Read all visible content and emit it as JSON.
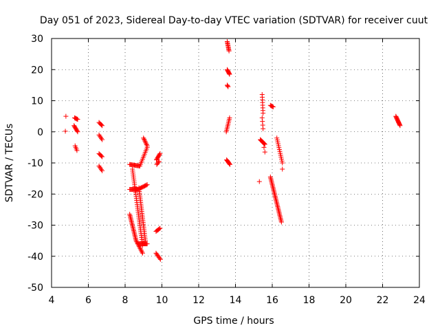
{
  "chart_data": {
    "type": "scatter",
    "title": "Day 051 of 2023, Sidereal Day-to-day VTEC variation (SDTVAR) for receiver cuut",
    "xlabel": "GPS time / hours",
    "ylabel": "SDTVAR / TECUs",
    "xlim": [
      4,
      24
    ],
    "ylim": [
      -50,
      30
    ],
    "xticks": [
      4,
      6,
      8,
      10,
      12,
      14,
      16,
      18,
      20,
      22,
      24
    ],
    "yticks": [
      -50,
      -40,
      -30,
      -20,
      -10,
      0,
      10,
      20,
      30
    ],
    "grid": true,
    "marker": "+",
    "color": "#ff0000",
    "segments": [
      {
        "x0": 4.78,
        "y0": 5.0,
        "x1": 4.78,
        "y1": 5.0,
        "n": 1
      },
      {
        "x0": 4.75,
        "y0": 0.2,
        "x1": 4.75,
        "y1": 0.2,
        "n": 1
      },
      {
        "x0": 5.25,
        "y0": 4.5,
        "x1": 5.42,
        "y1": 4.0,
        "n": 6
      },
      {
        "x0": 5.22,
        "y0": 2.0,
        "x1": 5.42,
        "y1": 0.0,
        "n": 8
      },
      {
        "x0": 5.28,
        "y0": -4.5,
        "x1": 5.38,
        "y1": -6.0,
        "n": 4
      },
      {
        "x0": 6.58,
        "y0": 3.0,
        "x1": 6.75,
        "y1": 2.0,
        "n": 5
      },
      {
        "x0": 6.58,
        "y0": -1.0,
        "x1": 6.75,
        "y1": -2.5,
        "n": 5
      },
      {
        "x0": 6.58,
        "y0": -7.0,
        "x1": 6.75,
        "y1": -8.0,
        "n": 5
      },
      {
        "x0": 6.58,
        "y0": -11.0,
        "x1": 6.75,
        "y1": -12.5,
        "n": 5
      },
      {
        "x0": 8.25,
        "y0": -10.5,
        "x1": 8.8,
        "y1": -11.0,
        "n": 14
      },
      {
        "x0": 8.8,
        "y0": -11.0,
        "x1": 9.2,
        "y1": -5.0,
        "n": 12
      },
      {
        "x0": 9.0,
        "y0": -2.0,
        "x1": 9.2,
        "y1": -4.5,
        "n": 8
      },
      {
        "x0": 8.25,
        "y0": -18.5,
        "x1": 8.7,
        "y1": -18.5,
        "n": 12
      },
      {
        "x0": 8.7,
        "y0": -18.5,
        "x1": 9.2,
        "y1": -17.0,
        "n": 12
      },
      {
        "x0": 8.4,
        "y0": -12.0,
        "x1": 8.95,
        "y1": -36.5,
        "n": 40
      },
      {
        "x0": 8.75,
        "y0": -18.0,
        "x1": 9.1,
        "y1": -35.0,
        "n": 30
      },
      {
        "x0": 8.25,
        "y0": -26.5,
        "x1": 8.6,
        "y1": -35.0,
        "n": 22
      },
      {
        "x0": 8.6,
        "y0": -35.0,
        "x1": 8.95,
        "y1": -39.0,
        "n": 12
      },
      {
        "x0": 8.7,
        "y0": -36.0,
        "x1": 9.2,
        "y1": -36.0,
        "n": 14
      },
      {
        "x0": 9.7,
        "y0": -9.0,
        "x1": 9.9,
        "y1": -7.0,
        "n": 8
      },
      {
        "x0": 9.72,
        "y0": -10.5,
        "x1": 9.85,
        "y1": -9.5,
        "n": 4
      },
      {
        "x0": 9.68,
        "y0": -32.0,
        "x1": 9.9,
        "y1": -31.0,
        "n": 6
      },
      {
        "x0": 9.68,
        "y0": -39.0,
        "x1": 9.92,
        "y1": -41.0,
        "n": 7
      },
      {
        "x0": 13.55,
        "y0": 29.0,
        "x1": 13.65,
        "y1": 26.0,
        "n": 10
      },
      {
        "x0": 13.55,
        "y0": 20.0,
        "x1": 13.68,
        "y1": 18.5,
        "n": 8
      },
      {
        "x0": 13.55,
        "y0": 15.0,
        "x1": 13.6,
        "y1": 14.5,
        "n": 3
      },
      {
        "x0": 13.5,
        "y0": 0.0,
        "x1": 13.68,
        "y1": 4.5,
        "n": 10
      },
      {
        "x0": 13.52,
        "y0": -9.0,
        "x1": 13.7,
        "y1": -10.5,
        "n": 8
      },
      {
        "x0": 15.45,
        "y0": 12.0,
        "x1": 15.5,
        "y1": 6.0,
        "n": 8
      },
      {
        "x0": 15.45,
        "y0": 4.5,
        "x1": 15.5,
        "y1": 1.0,
        "n": 4
      },
      {
        "x0": 15.35,
        "y0": -2.5,
        "x1": 15.6,
        "y1": -4.0,
        "n": 10
      },
      {
        "x0": 15.55,
        "y0": -5.0,
        "x1": 15.6,
        "y1": -6.5,
        "n": 2
      },
      {
        "x0": 15.3,
        "y0": -16.0,
        "x1": 15.3,
        "y1": -16.0,
        "n": 1
      },
      {
        "x0": 15.9,
        "y0": 8.5,
        "x1": 16.05,
        "y1": 8.0,
        "n": 5
      },
      {
        "x0": 15.9,
        "y0": -14.5,
        "x1": 16.5,
        "y1": -29.0,
        "n": 36
      },
      {
        "x0": 16.25,
        "y0": -2.0,
        "x1": 16.55,
        "y1": -10.0,
        "n": 14
      },
      {
        "x0": 16.55,
        "y0": -12.0,
        "x1": 16.55,
        "y1": -12.0,
        "n": 1
      },
      {
        "x0": 22.72,
        "y0": 5.0,
        "x1": 22.95,
        "y1": 2.0,
        "n": 14
      }
    ]
  }
}
